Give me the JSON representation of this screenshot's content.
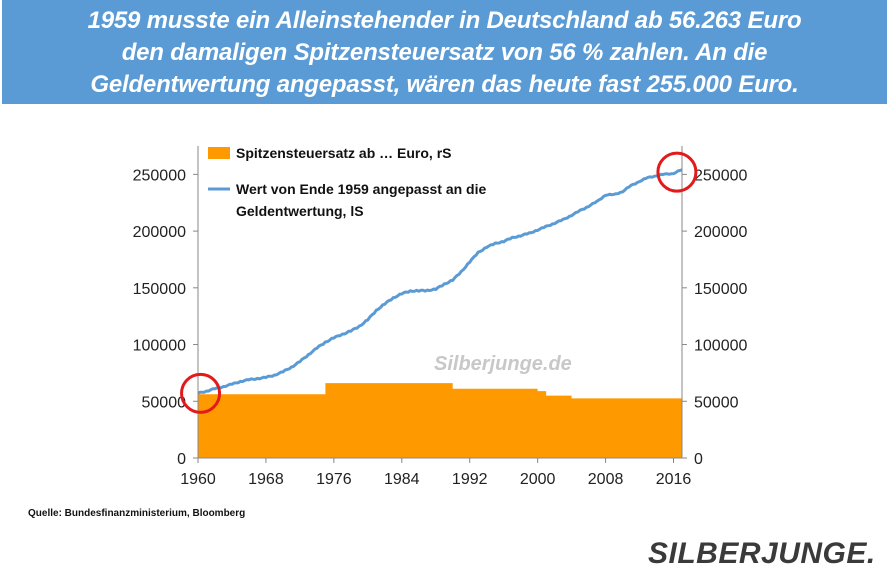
{
  "header": {
    "lines": [
      "1959 musste ein Alleinstehender in Deutschland ab 56.263 Euro",
      "den damaligen Spitzensteuersatz von 56 % zahlen. An die",
      "Geldentwertung angepasst, wären das heute fast 255.000 Euro."
    ],
    "color": "#5b9bd5"
  },
  "chart_data": {
    "type": "area",
    "xlim": [
      1960,
      2017
    ],
    "ylim": [
      0,
      275000
    ],
    "xticks": [
      "1960",
      "1968",
      "1976",
      "1984",
      "1992",
      "2000",
      "2008",
      "2016"
    ],
    "yticks_left": [
      "0",
      "50000",
      "100000",
      "150000",
      "200000",
      "250000"
    ],
    "yticks_right": [
      "0",
      "50000",
      "100000",
      "150000",
      "200000",
      "250000"
    ],
    "legend": {
      "placement": "top-left",
      "area_label": "Spitzensteuersatz ab … Euro, rS",
      "line_label_1": "Wert von Ende 1959 angepasst an die",
      "line_label_2": "Geldentwertung, lS"
    },
    "series": [
      {
        "name": "Spitzensteuersatz ab … Euro, rS",
        "kind": "area",
        "color": "#ff9900",
        "points": [
          [
            1960,
            56263
          ],
          [
            1975,
            56263
          ],
          [
            1975,
            66000
          ],
          [
            1990,
            66000
          ],
          [
            1990,
            61000
          ],
          [
            2000,
            61000
          ],
          [
            2000,
            59000
          ],
          [
            2001,
            59000
          ],
          [
            2001,
            55000
          ],
          [
            2004,
            55000
          ],
          [
            2004,
            52500
          ],
          [
            2017,
            52500
          ]
        ]
      },
      {
        "name": "Wert von Ende 1959 angepasst an die Geldentwertung, lS",
        "kind": "line",
        "color": "#5b9bd5",
        "points": [
          [
            1960,
            57000
          ],
          [
            1961,
            59000
          ],
          [
            1962,
            61000
          ],
          [
            1963,
            63000
          ],
          [
            1964,
            65000
          ],
          [
            1965,
            67500
          ],
          [
            1966,
            69000
          ],
          [
            1967,
            70000
          ],
          [
            1968,
            71000
          ],
          [
            1969,
            73000
          ],
          [
            1970,
            76000
          ],
          [
            1971,
            80000
          ],
          [
            1972,
            85000
          ],
          [
            1973,
            91000
          ],
          [
            1974,
            97000
          ],
          [
            1975,
            102000
          ],
          [
            1976,
            106000
          ],
          [
            1977,
            109000
          ],
          [
            1978,
            112000
          ],
          [
            1979,
            116000
          ],
          [
            1980,
            122000
          ],
          [
            1981,
            130000
          ],
          [
            1982,
            136000
          ],
          [
            1983,
            141000
          ],
          [
            1984,
            145000
          ],
          [
            1985,
            147000
          ],
          [
            1986,
            147500
          ],
          [
            1987,
            147500
          ],
          [
            1988,
            149000
          ],
          [
            1989,
            153000
          ],
          [
            1990,
            157000
          ],
          [
            1991,
            164000
          ],
          [
            1992,
            173000
          ],
          [
            1993,
            181000
          ],
          [
            1994,
            186000
          ],
          [
            1995,
            189000
          ],
          [
            1996,
            191000
          ],
          [
            1997,
            194000
          ],
          [
            1998,
            196000
          ],
          [
            1999,
            198000
          ],
          [
            2000,
            201000
          ],
          [
            2001,
            204000
          ],
          [
            2002,
            207000
          ],
          [
            2003,
            210000
          ],
          [
            2004,
            214000
          ],
          [
            2005,
            218000
          ],
          [
            2006,
            222000
          ],
          [
            2007,
            226000
          ],
          [
            2008,
            232000
          ],
          [
            2009,
            232000
          ],
          [
            2010,
            235000
          ],
          [
            2011,
            240000
          ],
          [
            2012,
            244000
          ],
          [
            2013,
            247000
          ],
          [
            2014,
            249000
          ],
          [
            2015,
            250000
          ],
          [
            2016,
            251000
          ],
          [
            2017,
            254000
          ]
        ]
      }
    ],
    "annotations": [
      {
        "kind": "circle",
        "x": 1960.3,
        "y": 57000,
        "color": "#e31a1c"
      },
      {
        "kind": "circle",
        "x": 2016.4,
        "y": 252000,
        "color": "#e31a1c"
      }
    ],
    "watermark": "Silberjunge.de"
  },
  "footer": {
    "source": "Quelle: Bundesfinanzministerium,  Bloomberg",
    "logo": "SILBERJUNGE."
  }
}
